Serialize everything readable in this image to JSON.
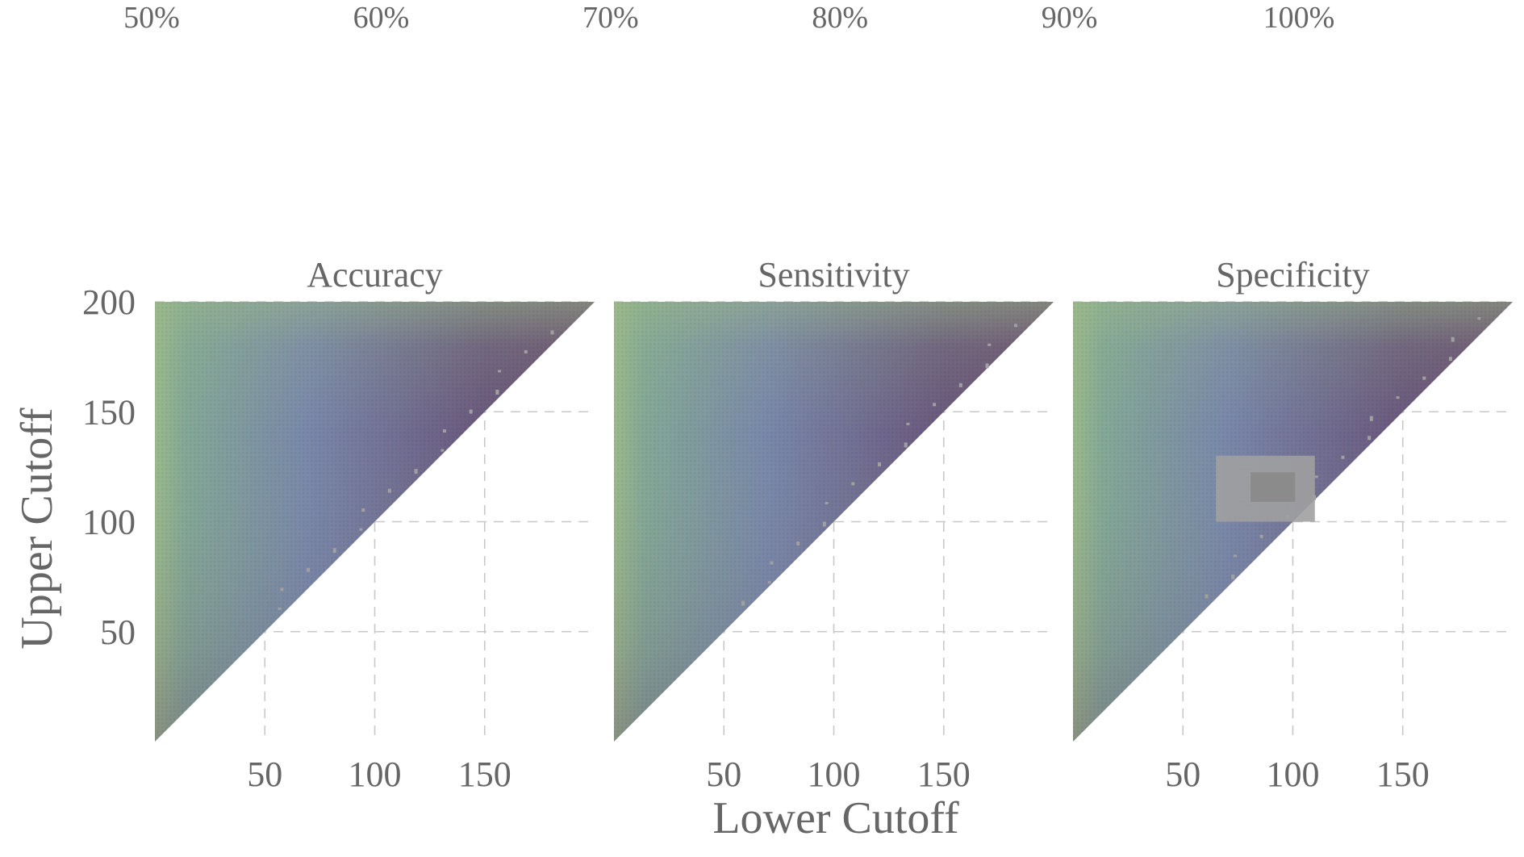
{
  "colorbar": {
    "labels": [
      "50%",
      "60%",
      "70%",
      "80%",
      "90%",
      "100%"
    ],
    "values": [
      0.5,
      0.6,
      0.7,
      0.8,
      0.9,
      1.0
    ]
  },
  "axes": {
    "xlabel": "Lower Cutoff",
    "ylabel": "Upper Cutoff"
  },
  "colors": {
    "low": "#5c3a63",
    "mid": "#6f7ea4",
    "high": "#93b482",
    "na": "#a0a0a0",
    "text": "#666666",
    "grid": "#c8c8c8"
  },
  "chart_data": {
    "type": "heatmap",
    "title": "",
    "xlabel": "Lower Cutoff",
    "ylabel": "Upper Cutoff",
    "xlim": [
      0,
      200
    ],
    "ylim": [
      0,
      200
    ],
    "x_ticks": [
      50,
      100,
      150
    ],
    "y_ticks": [
      50,
      100,
      150,
      200
    ],
    "x_tick_labels": [
      "50",
      "100",
      "150"
    ],
    "y_tick_labels": [
      "50",
      "100",
      "150",
      "200"
    ],
    "value_range": [
      0.5,
      1.0
    ],
    "grid": true,
    "legend_position": "top",
    "facets": [
      {
        "name": "Accuracy",
        "approx_values": [
          {
            "x": 5,
            "y": 195,
            "value": 0.93
          },
          {
            "x": 5,
            "y": 100,
            "value": 0.84
          },
          {
            "x": 5,
            "y": 20,
            "value": 0.72
          },
          {
            "x": 50,
            "y": 150,
            "value": 0.72
          },
          {
            "x": 100,
            "y": 180,
            "value": 0.62
          },
          {
            "x": 120,
            "y": 150,
            "value": 0.55
          },
          {
            "x": 80,
            "y": 90,
            "value": 0.52
          }
        ]
      },
      {
        "name": "Sensitivity",
        "approx_values": [
          {
            "x": 5,
            "y": 195,
            "value": 0.9
          },
          {
            "x": 5,
            "y": 100,
            "value": 0.86
          },
          {
            "x": 5,
            "y": 20,
            "value": 0.78
          },
          {
            "x": 50,
            "y": 150,
            "value": 0.74
          },
          {
            "x": 100,
            "y": 180,
            "value": 0.66
          },
          {
            "x": 120,
            "y": 150,
            "value": 0.57
          },
          {
            "x": 80,
            "y": 90,
            "value": 0.54
          }
        ]
      },
      {
        "name": "Specificity",
        "approx_values": [
          {
            "x": 5,
            "y": 195,
            "value": 0.95
          },
          {
            "x": 5,
            "y": 100,
            "value": 0.88
          },
          {
            "x": 5,
            "y": 20,
            "value": 0.76
          },
          {
            "x": 50,
            "y": 150,
            "value": 0.72
          },
          {
            "x": 100,
            "y": 180,
            "value": 0.64
          },
          {
            "x": 120,
            "y": 150,
            "value": 0.56
          },
          {
            "x": 80,
            "y": 90,
            "value": 0.52
          }
        ],
        "na_region": {
          "x": [
            65,
            110
          ],
          "y": [
            100,
            130
          ]
        }
      }
    ]
  }
}
